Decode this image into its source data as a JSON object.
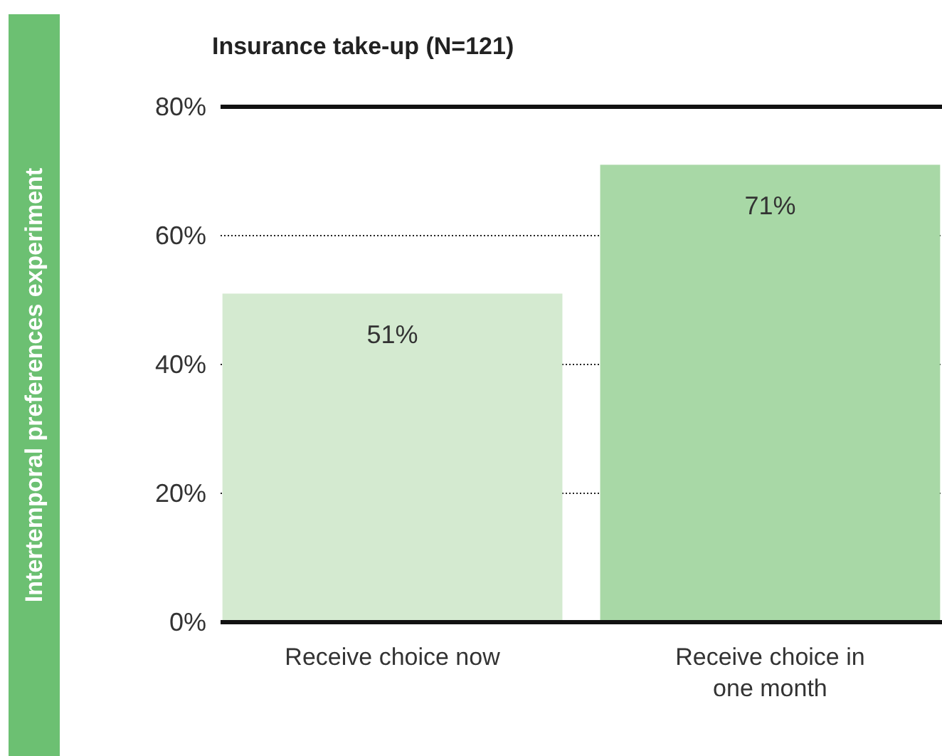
{
  "chart_data": {
    "type": "bar",
    "subtitle": "Insurance take-up (N=121)",
    "annotations": [
      "Intertemporal preferences experiment"
    ],
    "categories": [
      "Receive choice now",
      "Receive choice in one month"
    ],
    "values": [
      51,
      71
    ],
    "colors": [
      "#d4ead0",
      "#a8d8a6"
    ],
    "ylim": [
      0,
      80
    ],
    "yticks": [
      {
        "value": 0,
        "label": "0%"
      },
      {
        "value": 20,
        "label": "20%"
      },
      {
        "value": 40,
        "label": "40%"
      },
      {
        "value": 60,
        "label": "60%"
      },
      {
        "value": 80,
        "label": "80%"
      }
    ],
    "grid": "y",
    "value_labels": [
      "51%",
      "71%"
    ]
  }
}
